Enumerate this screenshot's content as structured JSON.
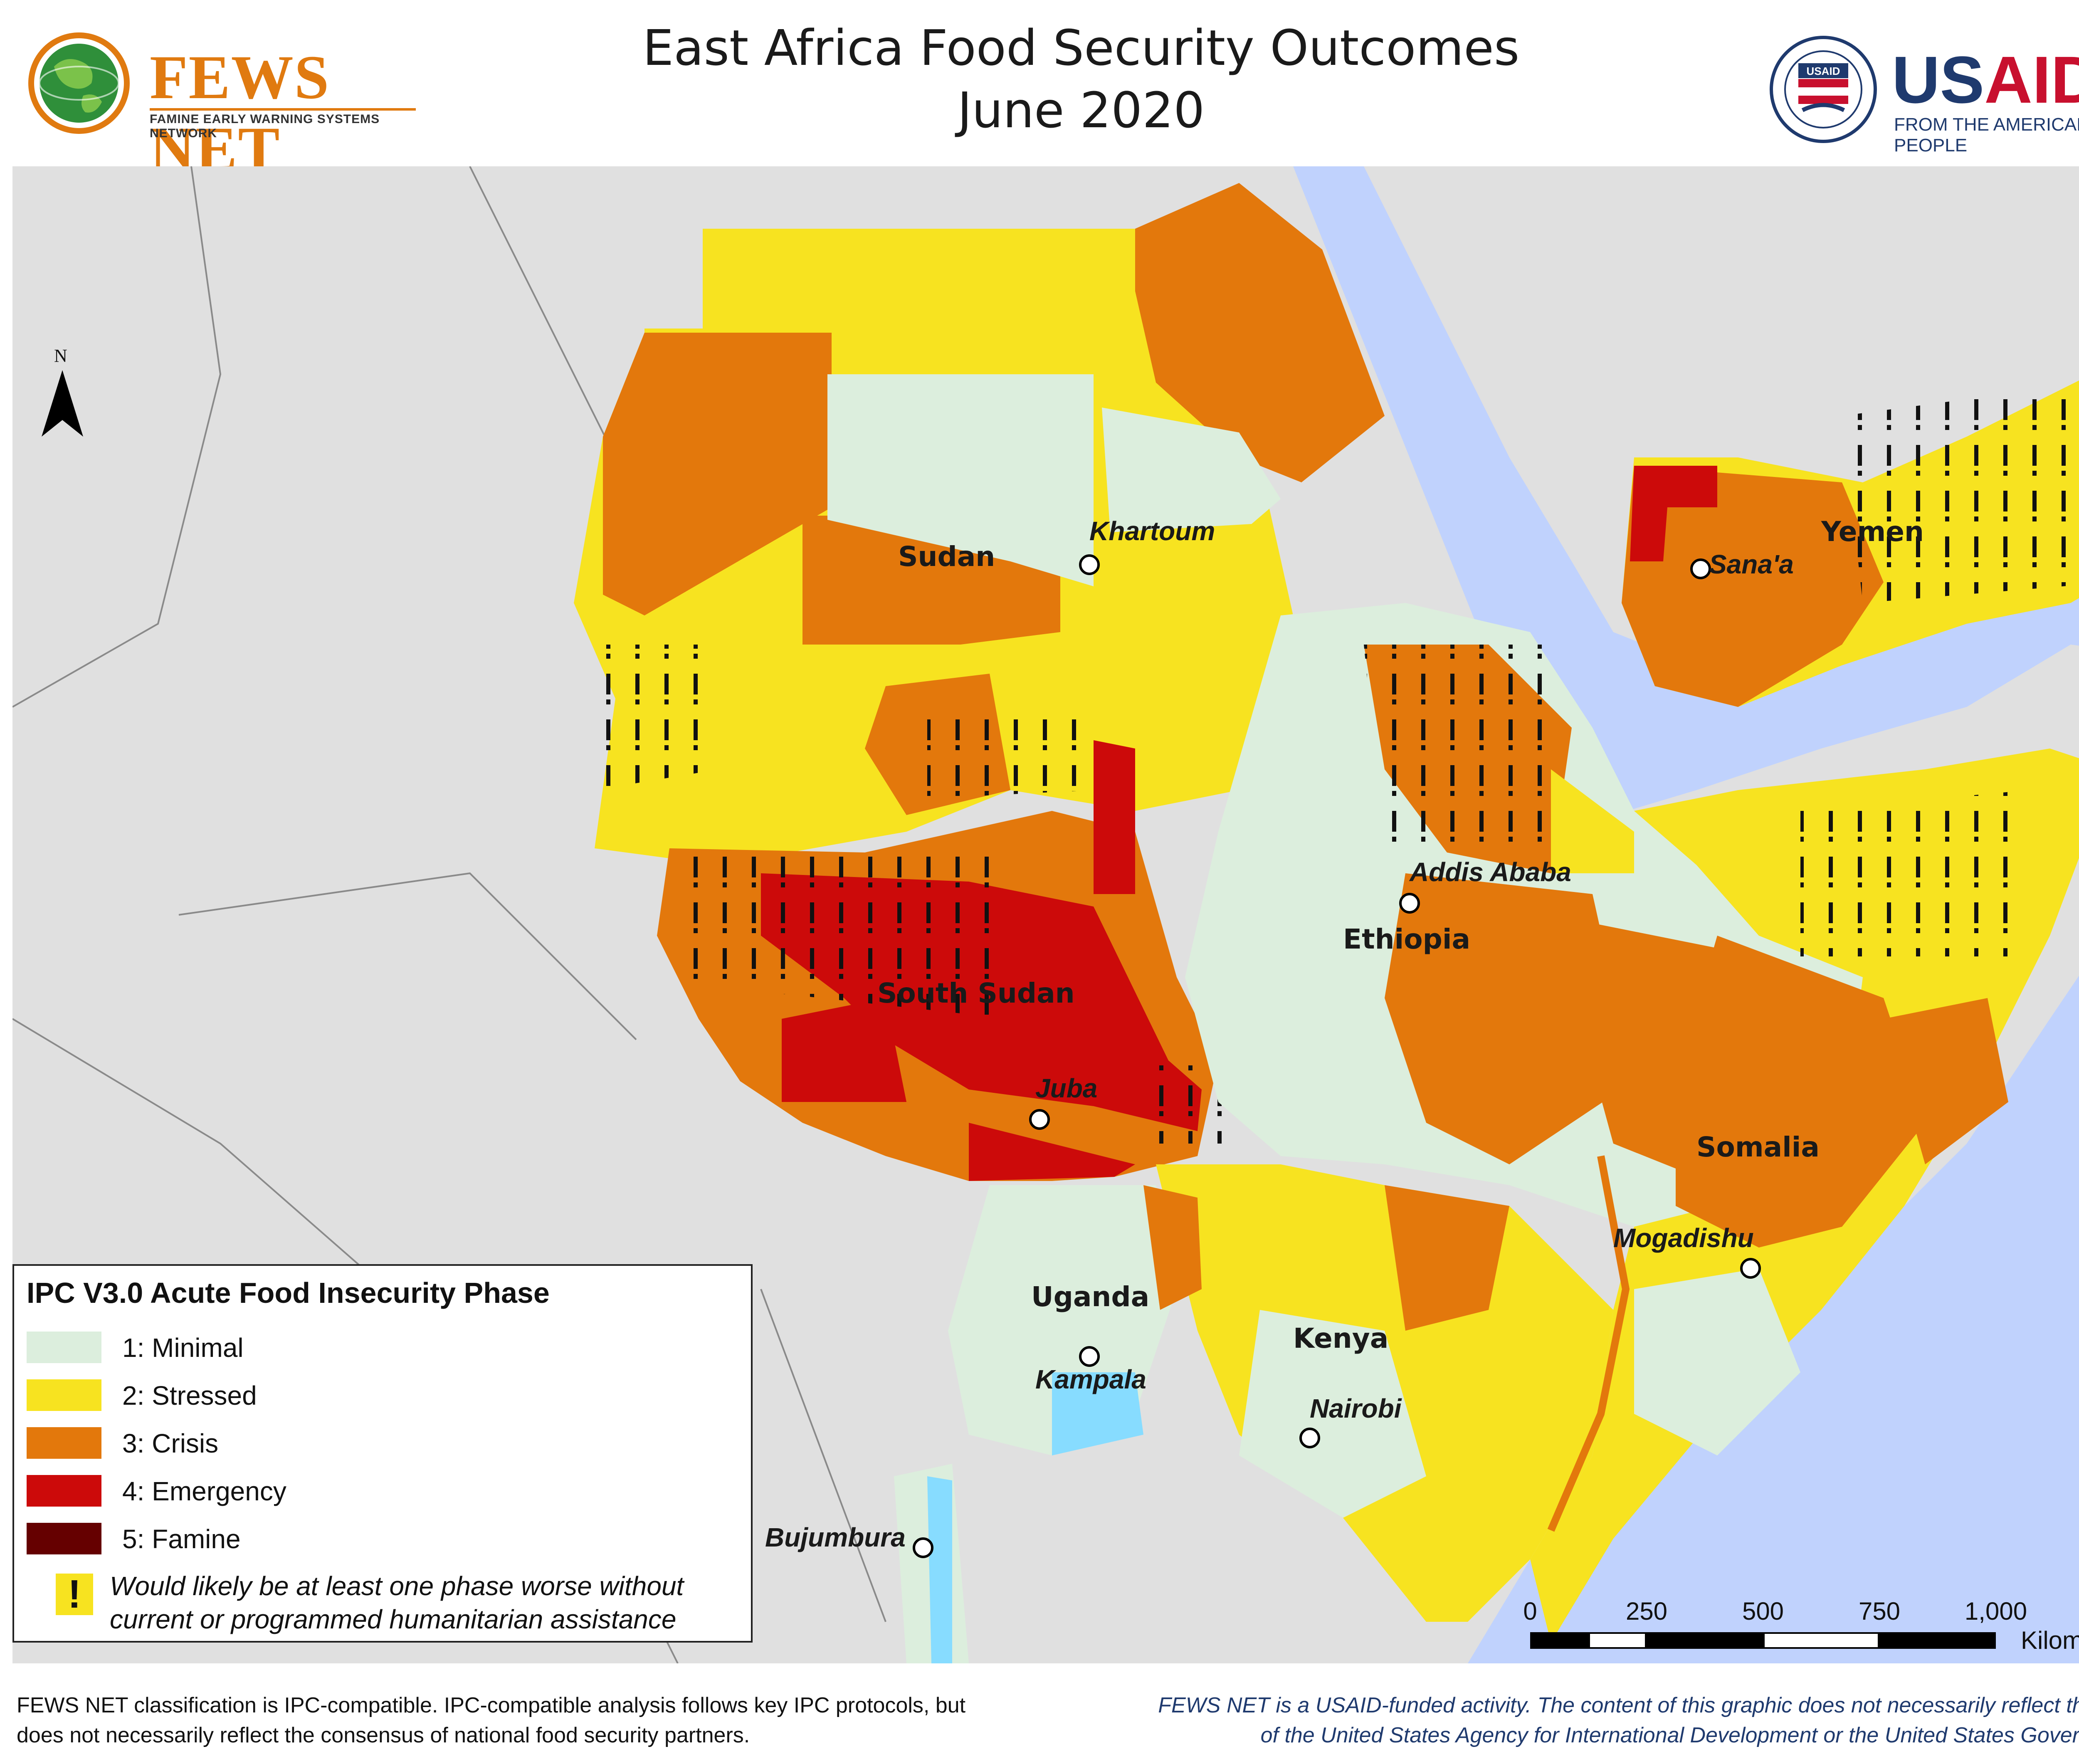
{
  "header": {
    "title_line1": "East Africa Food Security Outcomes",
    "title_line2": "June 2020",
    "fews_name": "FEWS NET",
    "fews_sub": "FAMINE EARLY WARNING SYSTEMS NETWORK",
    "usaid_name_a": "US",
    "usaid_name_b": "AID",
    "usaid_sub": "FROM THE AMERICAN PEOPLE",
    "usaid_seal_text": "USAID"
  },
  "map": {
    "north_label": "N",
    "colors": {
      "minimal": "#dceedd",
      "stressed": "#f7e320",
      "crisis": "#e3780c",
      "emergency": "#cc0a0a",
      "famine": "#650000",
      "water": "#c0d2fd",
      "other_land": "#e0e0e0",
      "lake": "#87dcff"
    },
    "countries": [
      {
        "name": "Sudan"
      },
      {
        "name": "South Sudan"
      },
      {
        "name": "Ethiopia"
      },
      {
        "name": "Somalia"
      },
      {
        "name": "Yemen"
      },
      {
        "name": "Uganda"
      },
      {
        "name": "Kenya"
      }
    ],
    "cities": [
      {
        "name": "Khartoum"
      },
      {
        "name": "Sana'a"
      },
      {
        "name": "Addis Ababa"
      },
      {
        "name": "Juba"
      },
      {
        "name": "Mogadishu"
      },
      {
        "name": "Kampala"
      },
      {
        "name": "Nairobi"
      },
      {
        "name": "Bujumbura"
      }
    ]
  },
  "legend": {
    "title": "IPC V3.0 Acute Food Insecurity Phase",
    "items": [
      {
        "label": "1: Minimal",
        "color": "#dceedd"
      },
      {
        "label": "2: Stressed",
        "color": "#f7e320"
      },
      {
        "label": "3: Crisis",
        "color": "#e3780c"
      },
      {
        "label": "4: Emergency",
        "color": "#cc0a0a"
      },
      {
        "label": "5: Famine",
        "color": "#650000"
      }
    ],
    "assistance_symbol": "!",
    "assistance_note": "Would likely be at least one phase worse without current or programmed humanitarian assistance"
  },
  "scale": {
    "ticks": [
      "0",
      "250",
      "500",
      "750",
      "1,000"
    ],
    "units": "Kilometers"
  },
  "footer": {
    "left": "FEWS NET classification is IPC-compatible. IPC-compatible analysis follows key IPC protocols, but does not necessarily reflect the consensus of national food security partners.",
    "right": "FEWS NET is a USAID-funded activity. The content of this graphic does not necessarily reflect the view of the United States Agency for International Development or the United States Government."
  }
}
